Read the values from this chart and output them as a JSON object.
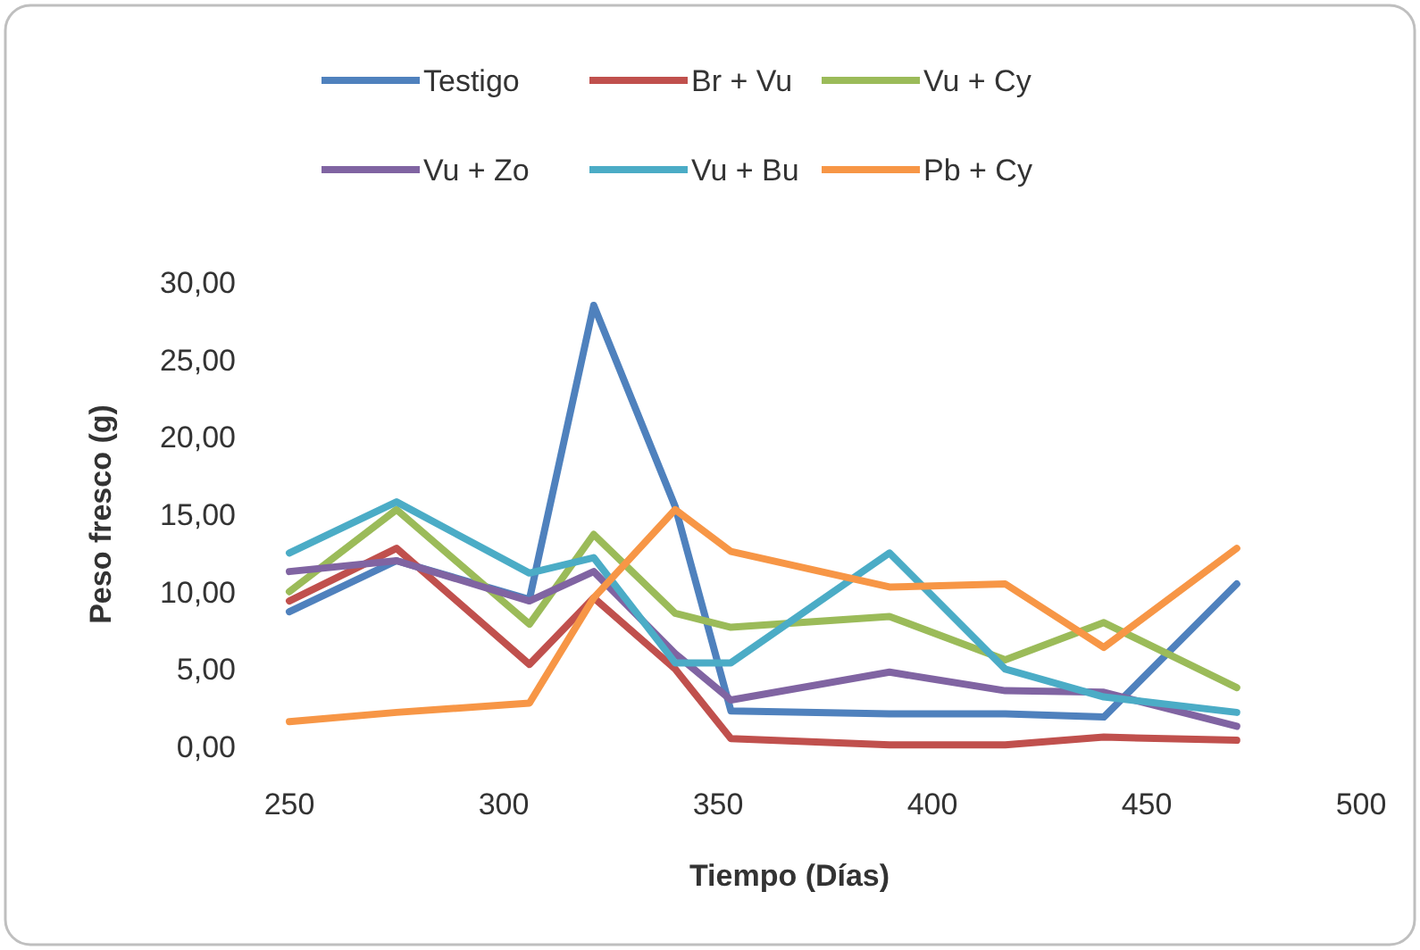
{
  "chart_data": {
    "type": "line",
    "xlabel": "Tiempo (Días)",
    "ylabel": "Peso fresco (g)",
    "x": [
      250,
      275,
      306,
      321,
      340,
      353,
      390,
      417,
      440,
      471
    ],
    "series": [
      {
        "name": "Testigo",
        "color": "#4f81bd",
        "values": [
          8.7,
          12,
          9.5,
          28.5,
          15.5,
          2.3,
          2.1,
          2.1,
          1.9,
          10.5
        ]
      },
      {
        "name": "Br + Vu",
        "color": "#c0504d",
        "values": [
          9.4,
          12.8,
          5.3,
          9.6,
          5,
          0.5,
          0.1,
          0.1,
          0.6,
          0.4
        ]
      },
      {
        "name": "Vu + Cy",
        "color": "#9bbb59",
        "values": [
          10,
          15.3,
          7.9,
          13.7,
          8.6,
          7.7,
          8.4,
          5.6,
          8,
          3.8
        ]
      },
      {
        "name": "Vu  + Zo",
        "color": "#8064a2",
        "values": [
          11.3,
          12,
          9.4,
          11.3,
          6,
          3,
          4.8,
          3.6,
          3.5,
          1.3
        ]
      },
      {
        "name": "Vu + Bu",
        "color": "#4bacc6",
        "values": [
          12.5,
          15.8,
          11.2,
          12.2,
          5.4,
          5.4,
          12.5,
          5,
          3.2,
          2.2
        ]
      },
      {
        "name": "Pb + Cy",
        "color": "#f79646",
        "values": [
          1.6,
          2.2,
          2.8,
          9.6,
          15.3,
          12.6,
          10.3,
          10.5,
          6.4,
          12.8
        ]
      }
    ],
    "xlim": [
      250,
      500
    ],
    "xticks": [
      250,
      300,
      350,
      400,
      450,
      500
    ],
    "ylim": [
      0,
      30
    ],
    "yticks": [
      {
        "value": 0,
        "label": "0,00"
      },
      {
        "value": 5,
        "label": "5,00"
      },
      {
        "value": 10,
        "label": "10,00"
      },
      {
        "value": 15,
        "label": "15,00"
      },
      {
        "value": 20,
        "label": "20,00"
      },
      {
        "value": 25,
        "label": "25,00"
      },
      {
        "value": 30,
        "label": "30,00"
      }
    ],
    "legend": "top",
    "marker": "none",
    "line_style": "solid"
  }
}
